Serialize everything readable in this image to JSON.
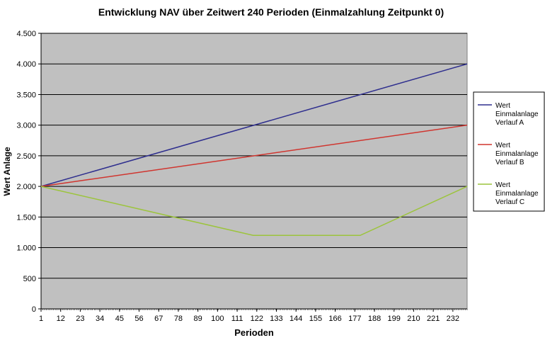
{
  "chart_data": {
    "type": "line",
    "title": "Entwicklung  NAV über Zeitwert 240 Perioden (Einmalzahlung Zeitpunkt  0)",
    "xlabel": "Perioden",
    "ylabel": "Wert Anlage",
    "ylim": [
      0,
      4500
    ],
    "ytick_values": [
      0,
      500,
      1000,
      1500,
      2000,
      2500,
      3000,
      3500,
      4000,
      4500
    ],
    "ytick_labels": [
      "0",
      "500",
      "1.000",
      "1.500",
      "2.000",
      "2.500",
      "3.000",
      "3.500",
      "4.000",
      "4.500"
    ],
    "xlim": [
      1,
      240
    ],
    "xtick_values": [
      1,
      12,
      23,
      34,
      45,
      56,
      67,
      78,
      89,
      100,
      111,
      122,
      133,
      144,
      155,
      166,
      177,
      188,
      199,
      210,
      221,
      232
    ],
    "xtick_labels": [
      "1",
      "12",
      "23",
      "34",
      "45",
      "56",
      "67",
      "78",
      "89",
      "100",
      "111",
      "122",
      "133",
      "144",
      "155",
      "166",
      "177",
      "188",
      "199",
      "210",
      "221",
      "232"
    ],
    "grid": true,
    "legend_position": "right",
    "series": [
      {
        "name": "Wert Einmalanlage Verlauf A",
        "legend_lines": [
          "Wert",
          "Einmalanlage",
          "Verlauf A"
        ],
        "color": "#2e2e8e",
        "x": [
          1,
          240
        ],
        "y": [
          2000,
          4000
        ]
      },
      {
        "name": "Wert Einmalanlage Verlauf B",
        "legend_lines": [
          "Wert",
          "Einmalanlage",
          "Verlauf B"
        ],
        "color": "#d0352f",
        "x": [
          1,
          240
        ],
        "y": [
          2000,
          3000
        ]
      },
      {
        "name": "Wert Einmalanlage Verlauf C",
        "legend_lines": [
          "Wert",
          "Einmalanlage",
          "Verlauf C"
        ],
        "color": "#9cc43c",
        "x": [
          1,
          120,
          180,
          240
        ],
        "y": [
          2000,
          1200,
          1200,
          2000
        ]
      }
    ]
  }
}
